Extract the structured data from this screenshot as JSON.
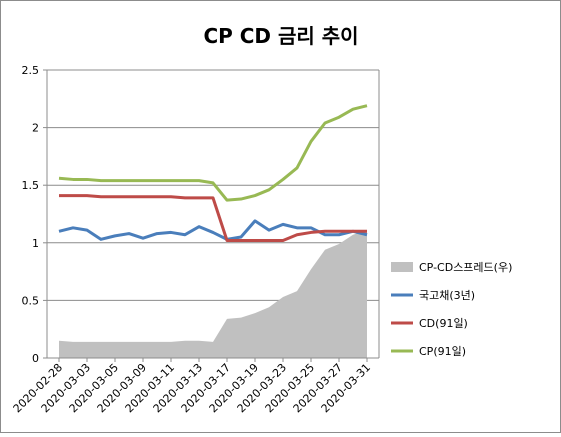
{
  "chart_data": {
    "type": "line",
    "title": "CP CD 금리 추이",
    "xlabel": "",
    "ylabel": "",
    "ylim": [
      0,
      2.5
    ],
    "yticks": [
      0,
      0.5,
      1,
      1.5,
      2,
      2.5
    ],
    "ytick_labels": [
      "0",
      "0.5",
      "1",
      "1.5",
      "2",
      "2.5"
    ],
    "grid": true,
    "legend": "right",
    "categories": [
      "2020-02-28",
      "2020-03-02",
      "2020-03-03",
      "2020-03-04",
      "2020-03-05",
      "2020-03-06",
      "2020-03-09",
      "2020-03-10",
      "2020-03-11",
      "2020-03-12",
      "2020-03-13",
      "2020-03-16",
      "2020-03-17",
      "2020-03-18",
      "2020-03-19",
      "2020-03-20",
      "2020-03-23",
      "2020-03-24",
      "2020-03-25",
      "2020-03-26",
      "2020-03-27",
      "2020-03-30",
      "2020-03-31"
    ],
    "tick_labels": [
      "2020-02-28",
      "2020-03-03",
      "2020-03-05",
      "2020-03-09",
      "2020-03-11",
      "2020-03-13",
      "2020-03-17",
      "2020-03-19",
      "2020-03-23",
      "2020-03-25",
      "2020-03-27",
      "2020-03-31"
    ],
    "series": [
      {
        "name": "CP-CD스프레드(우)",
        "kind": "area",
        "color": "#c0c0c0",
        "values": [
          0.15,
          0.14,
          0.14,
          0.14,
          0.14,
          0.14,
          0.14,
          0.14,
          0.14,
          0.15,
          0.15,
          0.14,
          0.34,
          0.35,
          0.39,
          0.44,
          0.53,
          0.58,
          0.77,
          0.94,
          0.99,
          1.07,
          1.11
        ]
      },
      {
        "name": "국고채(3년)",
        "kind": "line",
        "color": "#4a7ebb",
        "values": [
          1.1,
          1.13,
          1.11,
          1.03,
          1.06,
          1.08,
          1.04,
          1.08,
          1.09,
          1.07,
          1.14,
          1.09,
          1.03,
          1.05,
          1.19,
          1.11,
          1.16,
          1.13,
          1.13,
          1.07,
          1.07,
          1.1,
          1.07
        ]
      },
      {
        "name": "CD(91일)",
        "kind": "line",
        "color": "#be4b48",
        "values": [
          1.41,
          1.41,
          1.41,
          1.4,
          1.4,
          1.4,
          1.4,
          1.4,
          1.4,
          1.39,
          1.39,
          1.39,
          1.02,
          1.02,
          1.02,
          1.02,
          1.02,
          1.07,
          1.09,
          1.1,
          1.1,
          1.1,
          1.1
        ]
      },
      {
        "name": "CP(91일)",
        "kind": "line",
        "color": "#98b954",
        "values": [
          1.56,
          1.55,
          1.55,
          1.54,
          1.54,
          1.54,
          1.54,
          1.54,
          1.54,
          1.54,
          1.54,
          1.52,
          1.37,
          1.38,
          1.41,
          1.46,
          1.55,
          1.65,
          1.88,
          2.04,
          2.09,
          2.16,
          2.19
        ]
      }
    ]
  }
}
